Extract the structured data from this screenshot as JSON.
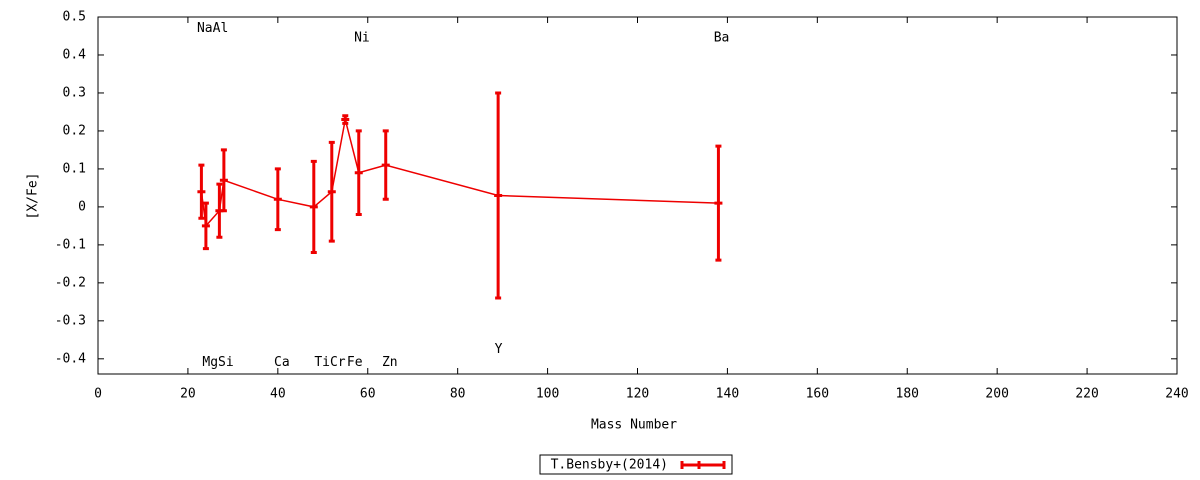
{
  "chart_data": {
    "type": "errorbar-line",
    "xlabel": "Mass Number",
    "ylabel": "[X/Fe]",
    "xlim": [
      0,
      240
    ],
    "xticks": [
      0,
      20,
      40,
      60,
      80,
      100,
      120,
      140,
      160,
      180,
      200,
      220,
      240
    ],
    "ylim": [
      -0.44,
      0.5
    ],
    "yticks": [
      0.5,
      0.4,
      0.3,
      0.2,
      0.1,
      0,
      -0.1,
      -0.2,
      -0.3,
      -0.4
    ],
    "grid": false,
    "legend": "bottom-center",
    "series": [
      {
        "name": "T.Bensby+(2014)",
        "color": "#ee0000",
        "x": [
          23,
          24,
          27,
          28,
          40,
          48,
          52,
          55,
          58,
          64,
          89,
          138
        ],
        "values": [
          0.04,
          -0.05,
          -0.01,
          0.07,
          0.02,
          0.0,
          0.04,
          0.23,
          0.09,
          0.11,
          0.03,
          0.01
        ],
        "errors": [
          0.07,
          0.06,
          0.07,
          0.08,
          0.08,
          0.12,
          0.13,
          0.01,
          0.11,
          0.09,
          0.27,
          0.15
        ]
      }
    ],
    "annotations": [
      {
        "text": "NaAl",
        "x": 25.5,
        "y": 0.47
      },
      {
        "text": "Ni",
        "x": 58.7,
        "y": 0.445
      },
      {
        "text": "Ba",
        "x": 138.7,
        "y": 0.445
      },
      {
        "text": "MgSi",
        "x": 26.7,
        "y": -0.41
      },
      {
        "text": "Ca",
        "x": 40.9,
        "y": -0.41
      },
      {
        "text": "TiCr",
        "x": 51.6,
        "y": -0.41
      },
      {
        "text": "Fe",
        "x": 57.1,
        "y": -0.41
      },
      {
        "text": "Zn",
        "x": 64.9,
        "y": -0.41
      },
      {
        "text": "Y",
        "x": 89.1,
        "y": -0.375
      }
    ]
  }
}
